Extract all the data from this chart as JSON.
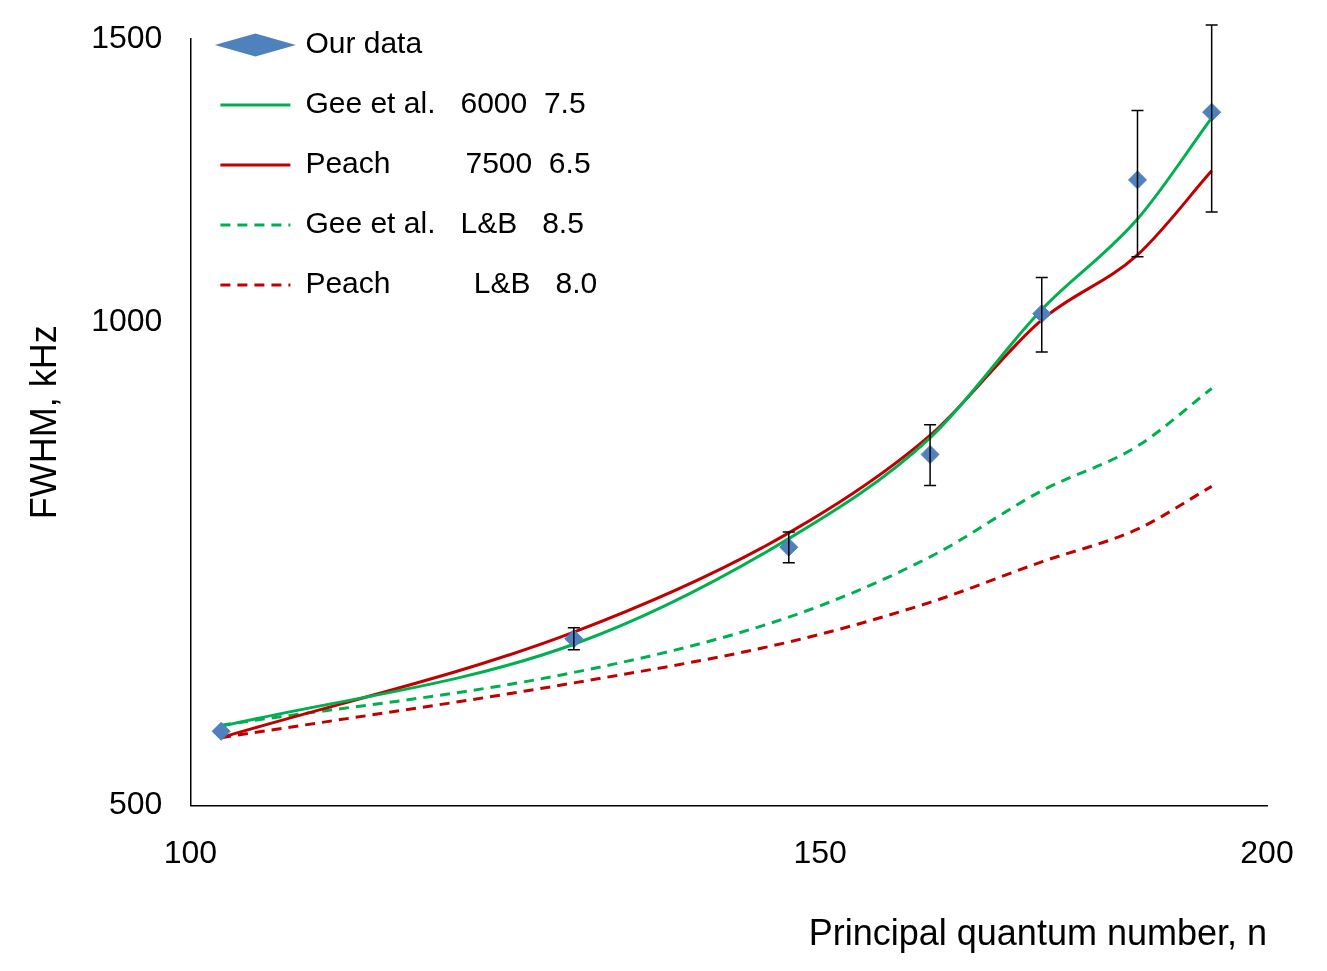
{
  "chart_data": {
    "type": "line",
    "xlabel": "Principal quantum number, n",
    "ylabel": "FWHM, kHz",
    "log": "xy",
    "xlim": [
      100,
      200
    ],
    "xticks": [
      100,
      150,
      200
    ],
    "ylim": [
      500,
      1500
    ],
    "yticks": [
      500,
      1000,
      1500
    ],
    "grid": false,
    "legend": "top left",
    "series": [
      {
        "name": "Our data",
        "type": "scatter",
        "marker": "diamond",
        "color": "#4f81bd",
        "x": [
          102,
          128,
          147,
          161,
          173,
          184,
          193
        ],
        "values": [
          556,
          635,
          724,
          827,
          1012,
          1226,
          1351
        ],
        "errors": [
          null,
          10,
          16,
          36,
          54,
          128,
          180
        ]
      },
      {
        "name": "Gee et al.   6000  7.5",
        "marker": "none",
        "line_style": "solid",
        "color": "#00b050",
        "x": [
          102,
          128,
          147,
          161,
          173,
          184,
          193
        ],
        "values": [
          560,
          630,
          733,
          847,
          1018,
          1159,
          1340
        ]
      },
      {
        "name": "Peach         7500  6.5",
        "marker": "none",
        "line_style": "solid",
        "color": "#c00000",
        "x": [
          102,
          128,
          147,
          161,
          173,
          184,
          193
        ],
        "values": [
          551,
          641,
          739,
          850,
          1003,
          1101,
          1242
        ]
      },
      {
        "name": "Gee et al.   L&B   8.5",
        "marker": "none",
        "line_style": "dashed",
        "color": "#00b050",
        "x": [
          102,
          128,
          147,
          161,
          173,
          184,
          193
        ],
        "values": [
          561,
          605,
          655,
          714,
          785,
          837,
          909
        ]
      },
      {
        "name": "Peach          L&B   8.0",
        "marker": "none",
        "line_style": "dashed",
        "color": "#c00000",
        "x": [
          102,
          128,
          147,
          161,
          173,
          184,
          193
        ],
        "values": [
          551,
          596,
          632,
          669,
          709,
          743,
          790
        ]
      }
    ]
  }
}
